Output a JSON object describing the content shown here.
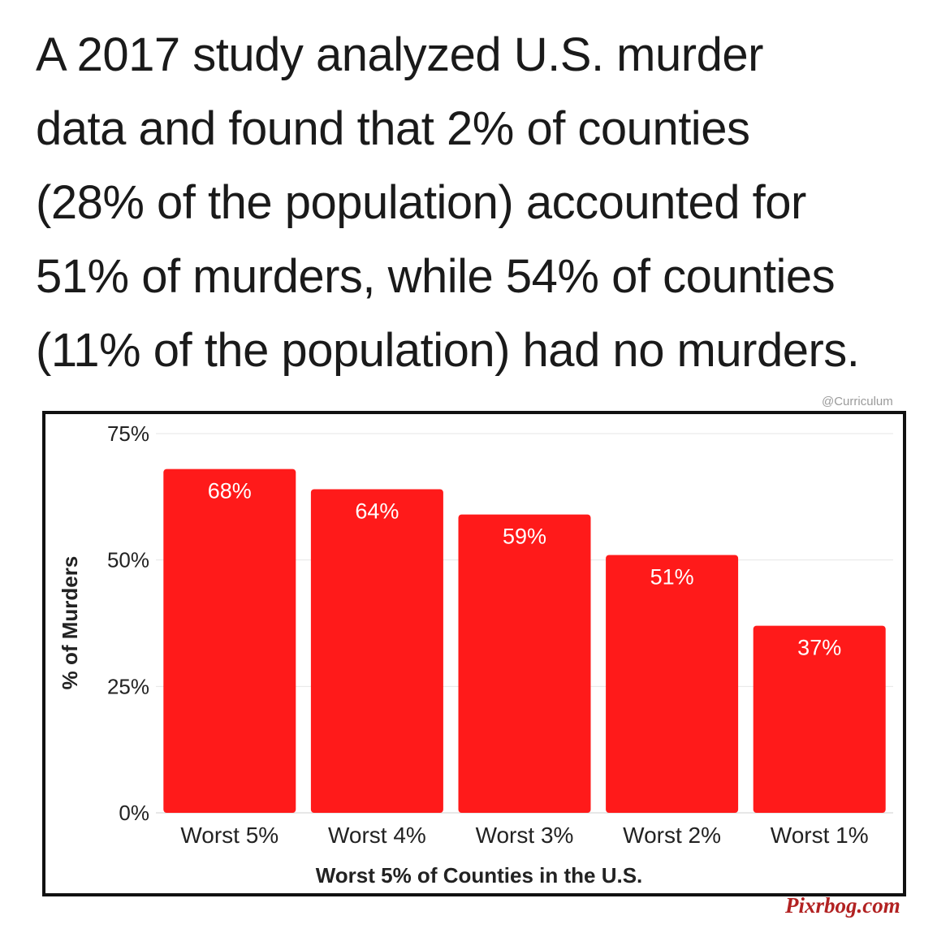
{
  "headline": {
    "lines": [
      "A 2017 study analyzed U.S. murder",
      "data and found that 2% of counties",
      "(28% of the population) accounted for",
      "51% of murders, while 54% of counties",
      "(11% of the population) had no murders."
    ]
  },
  "credit": "@Curriculum",
  "watermark": "Pixrbog.com",
  "chart_data": {
    "type": "bar",
    "categories": [
      "Worst 5%",
      "Worst 4%",
      "Worst 3%",
      "Worst 2%",
      "Worst 1%"
    ],
    "values": [
      68,
      64,
      59,
      51,
      37
    ],
    "value_labels": [
      "68%",
      "64%",
      "59%",
      "51%",
      "37%"
    ],
    "xlabel": "Worst 5% of Counties in the U.S.",
    "ylabel": "% of Murders",
    "ylim": [
      0,
      75
    ],
    "yticks": [
      {
        "value": 0,
        "label": "0%"
      },
      {
        "value": 25,
        "label": "25%"
      },
      {
        "value": 50,
        "label": "50%"
      },
      {
        "value": 75,
        "label": "75%"
      }
    ],
    "grid": true,
    "bar_color": "#ff1a1a"
  }
}
